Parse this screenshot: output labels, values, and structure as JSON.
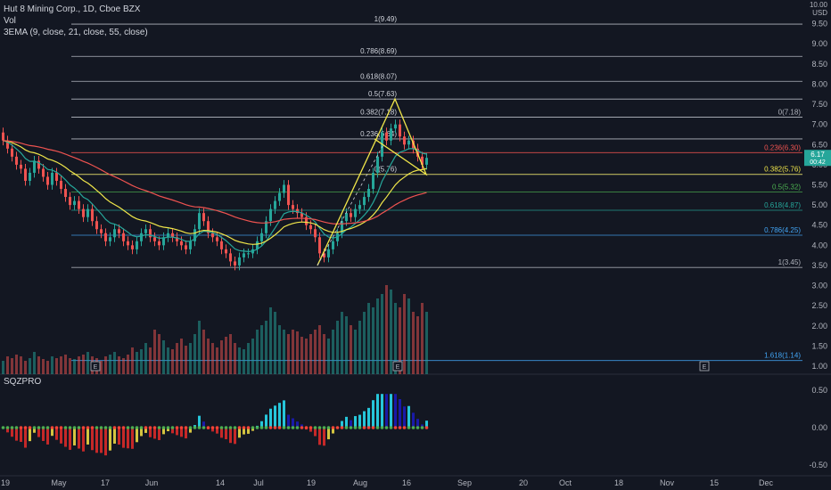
{
  "chart_header": {
    "title_line": "Hut 8 Mining Corp., 1D, Cboe BZX",
    "vol_label": "Vol",
    "ema_label": "3EMA (9, close, 21, close, 55, close)",
    "indicator_label": "SQZPRO",
    "currency": "USD",
    "currency_top": "10.00"
  },
  "colors": {
    "background": "#131722",
    "up": "#26a69a",
    "down": "#ef5350",
    "ema_fast": "#26a69a",
    "ema_mid": "#f0e64a",
    "ema_slow": "#ef5350",
    "fib_line": "#b2b5be",
    "fib_blue": "#42a5f5",
    "sqz_blue": "#1a1aa8",
    "sqz_cyan": "#26c6da",
    "sqz_red": "#c62828",
    "sqz_yellow": "#d4c440",
    "dot_green": "#4caf50",
    "dot_red": "#f44336"
  },
  "chart_data": {
    "type": "candlestick",
    "price_axis_ticks": [
      "9.50",
      "9.00",
      "8.50",
      "8.00",
      "7.50",
      "7.00",
      "6.50",
      "6.00",
      "5.50",
      "5.00",
      "4.50",
      "4.00",
      "3.50",
      "3.00",
      "2.50",
      "2.00",
      "1.50",
      "1.00"
    ],
    "indicator_axis_ticks": [
      "0.50",
      "0.00",
      "-0.50"
    ],
    "x_axis_ticks": [
      "19",
      "May",
      "17",
      "Jun",
      "14",
      "Jul",
      "19",
      "Aug",
      "16",
      "Sep",
      "20",
      "Oct",
      "18",
      "Nov",
      "15",
      "Dec"
    ],
    "price_ylim": [
      1.0,
      10.0
    ],
    "indicator_ylim": [
      -0.5,
      0.5
    ],
    "fib_levels": [
      {
        "label": "1(9.49)",
        "value": 9.49
      },
      {
        "label": "0.786(8.69)",
        "value": 8.69
      },
      {
        "label": "0.618(8.07)",
        "value": 8.07
      },
      {
        "label": "0.5(7.63)",
        "value": 7.63
      },
      {
        "label": "0.382(7.18)",
        "value": 7.18
      },
      {
        "label": "0.236(6.64)",
        "value": 6.64
      },
      {
        "label": "0(5.76)",
        "value": 5.76
      }
    ],
    "fib_right_levels": [
      {
        "label": "0(7.18)",
        "value": 7.18,
        "color": "#b2b5be"
      },
      {
        "label": "0.236(6.30)",
        "value": 6.3,
        "color": "#ef5350"
      },
      {
        "label": "0.382(5.76)",
        "value": 5.76,
        "color": "#f0e64a"
      },
      {
        "label": "0.5(5.32)",
        "value": 5.32,
        "color": "#4caf50"
      },
      {
        "label": "0.618(4.87)",
        "value": 4.87,
        "color": "#26a69a"
      },
      {
        "label": "0.786(4.25)",
        "value": 4.25,
        "color": "#42a5f5"
      },
      {
        "label": "1(3.45)",
        "value": 3.45,
        "color": "#b2b5be"
      },
      {
        "label": "1.618(1.14)",
        "value": 1.14,
        "color": "#42a5f5"
      }
    ],
    "last_price": "6.17",
    "last_price_sub": "00:42",
    "earnings_markers": [
      "E",
      "E",
      "E"
    ],
    "closes": [
      6.6,
      6.4,
      6.2,
      6.0,
      5.9,
      5.6,
      5.8,
      6.1,
      5.9,
      5.7,
      5.5,
      5.8,
      5.6,
      5.4,
      5.2,
      5.0,
      5.1,
      4.9,
      4.7,
      4.9,
      4.6,
      4.4,
      4.3,
      4.1,
      4.2,
      4.4,
      4.3,
      4.1,
      4.0,
      3.9,
      4.1,
      4.3,
      4.4,
      4.2,
      4.1,
      4.0,
      4.2,
      4.3,
      4.2,
      4.1,
      4.0,
      3.9,
      4.1,
      4.4,
      4.8,
      4.6,
      4.3,
      4.2,
      4.1,
      3.9,
      3.8,
      3.6,
      3.5,
      3.7,
      3.8,
      3.8,
      3.9,
      4.1,
      4.3,
      4.6,
      4.9,
      5.1,
      5.3,
      5.5,
      5.0,
      4.9,
      4.8,
      4.7,
      4.5,
      4.4,
      4.2,
      3.8,
      3.7,
      3.9,
      4.1,
      4.3,
      4.6,
      4.8,
      4.7,
      4.9,
      5.0,
      5.2,
      5.4,
      5.8,
      6.2,
      6.8,
      6.6,
      6.9,
      7.0,
      6.7,
      6.5,
      6.6,
      6.4,
      6.2,
      6.0,
      6.17
    ],
    "volumes": [
      0.15,
      0.2,
      0.18,
      0.22,
      0.2,
      0.15,
      0.18,
      0.25,
      0.2,
      0.17,
      0.15,
      0.2,
      0.18,
      0.2,
      0.22,
      0.18,
      0.17,
      0.2,
      0.22,
      0.25,
      0.2,
      0.18,
      0.15,
      0.2,
      0.22,
      0.25,
      0.2,
      0.18,
      0.22,
      0.3,
      0.25,
      0.28,
      0.35,
      0.3,
      0.5,
      0.45,
      0.38,
      0.3,
      0.28,
      0.35,
      0.4,
      0.32,
      0.35,
      0.45,
      0.6,
      0.5,
      0.4,
      0.35,
      0.3,
      0.38,
      0.42,
      0.45,
      0.35,
      0.3,
      0.28,
      0.35,
      0.4,
      0.5,
      0.55,
      0.6,
      0.75,
      0.7,
      0.55,
      0.5,
      0.45,
      0.5,
      0.48,
      0.42,
      0.4,
      0.45,
      0.5,
      0.55,
      0.45,
      0.4,
      0.5,
      0.6,
      0.7,
      0.65,
      0.55,
      0.5,
      0.6,
      0.7,
      0.8,
      0.75,
      0.85,
      0.9,
      1.0,
      0.95,
      0.8,
      0.75,
      0.9,
      0.85,
      0.7,
      0.65,
      0.8,
      0.7
    ]
  }
}
